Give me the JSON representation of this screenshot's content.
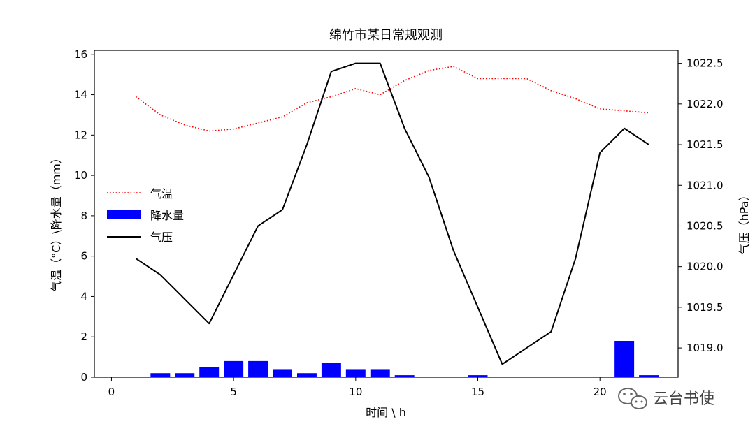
{
  "chart_data": {
    "type": "bar+line",
    "title": "绵竹市某日常规观测",
    "xlabel": "时间 \\ h",
    "ylabel_left": "气温（°C）\\降水量（mm）",
    "ylabel_right": "气压（hPa）",
    "xlim": [
      -0.7,
      23.2
    ],
    "xticks": [
      0,
      5,
      10,
      15,
      20
    ],
    "ylim_left": [
      0,
      16.2
    ],
    "yticks_left": [
      0,
      2,
      4,
      6,
      8,
      10,
      12,
      14,
      16
    ],
    "ylim_right": [
      1018.64,
      1022.66
    ],
    "yticks_right": [
      1019.0,
      1019.5,
      1020.0,
      1020.5,
      1021.0,
      1021.5,
      1022.0,
      1022.5
    ],
    "yticks_right_labels": [
      "1019.0",
      "1019.5",
      "1020.0",
      "1020.5",
      "1021.0",
      "1021.5",
      "1022.0",
      "1022.5"
    ],
    "hours": [
      1,
      2,
      3,
      4,
      5,
      6,
      7,
      8,
      9,
      10,
      11,
      12,
      13,
      14,
      15,
      16,
      17,
      18,
      19,
      20,
      21,
      22
    ],
    "series": [
      {
        "name": "气温",
        "kind": "line",
        "style": "dotted",
        "color": "#ff0000",
        "axis": "left",
        "values": [
          13.9,
          13.0,
          12.5,
          12.2,
          12.3,
          12.6,
          12.9,
          13.6,
          13.9,
          14.3,
          14.0,
          14.7,
          15.2,
          15.4,
          14.8,
          14.8,
          14.8,
          14.2,
          13.8,
          13.3,
          13.2,
          13.1
        ]
      },
      {
        "name": "降水量",
        "kind": "bar",
        "color": "#0000ff",
        "axis": "left",
        "values": [
          0,
          0.2,
          0.2,
          0.5,
          0.8,
          0.8,
          0.4,
          0.2,
          0.7,
          0.4,
          0.4,
          0.1,
          0,
          0,
          0.1,
          0,
          0,
          0,
          0,
          0,
          1.8,
          0.1
        ]
      },
      {
        "name": "气压",
        "kind": "line",
        "style": "solid",
        "color": "#000000",
        "axis": "right",
        "values": [
          1020.1,
          1019.9,
          1019.6,
          1019.3,
          1019.9,
          1020.5,
          1020.7,
          1021.5,
          1022.4,
          1022.5,
          1022.5,
          1021.7,
          1021.1,
          1020.2,
          1019.5,
          1018.8,
          1019.0,
          1019.2,
          1020.1,
          1021.4,
          1021.7,
          1021.5
        ]
      }
    ],
    "legend_position": "center-left"
  },
  "watermark": {
    "text": "云台书使",
    "icon": "wechat-icon"
  }
}
